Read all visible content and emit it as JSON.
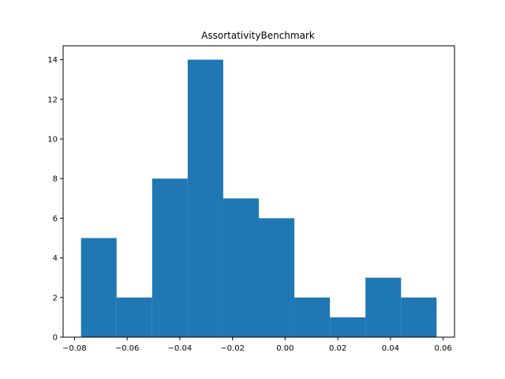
{
  "chart_data": {
    "type": "bar",
    "title": "AssortativityBenchmark",
    "xlabel": "",
    "ylabel": "",
    "bin_edges": [
      -0.0775,
      -0.064,
      -0.0505,
      -0.037,
      -0.0235,
      -0.01,
      0.0035,
      0.017,
      0.0305,
      0.044,
      0.0575
    ],
    "values": [
      5,
      2,
      8,
      14,
      7,
      6,
      2,
      1,
      3,
      2
    ],
    "xlim": [
      -0.0843,
      0.0643
    ],
    "ylim": [
      0,
      14.7
    ],
    "xticks": [
      -0.08,
      -0.06,
      -0.04,
      -0.02,
      0.0,
      0.02,
      0.04,
      0.06
    ],
    "xtick_labels": [
      "−0.08",
      "−0.06",
      "−0.04",
      "−0.02",
      "0.00",
      "0.02",
      "0.04",
      "0.06"
    ],
    "yticks": [
      0,
      2,
      4,
      6,
      8,
      10,
      12,
      14
    ],
    "ytick_labels": [
      "0",
      "2",
      "4",
      "6",
      "8",
      "10",
      "12",
      "14"
    ],
    "bar_color": "#1f77b4",
    "grid": false,
    "legend": "none"
  }
}
